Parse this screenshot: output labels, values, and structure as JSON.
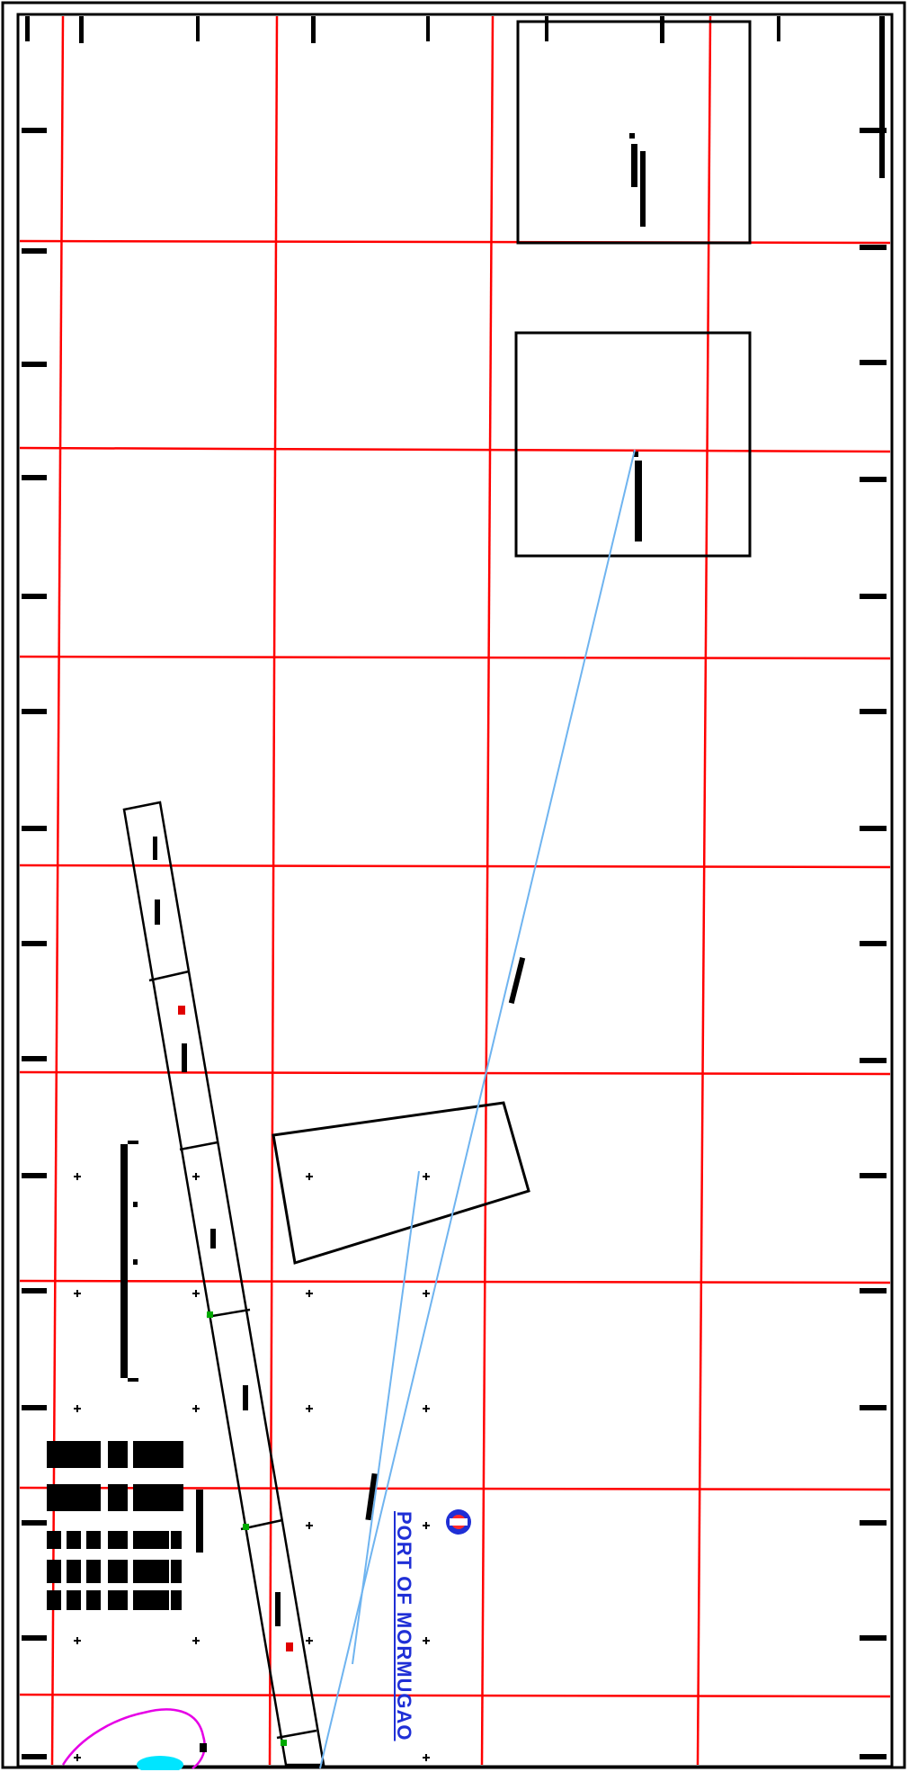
{
  "map": {
    "title": "PORT OF MORMUGAO",
    "logo": "port-logo",
    "colors": {
      "frame": "#000000",
      "grid": "#ff0000",
      "route": "#6fb4f0",
      "title": "#1f2fd6",
      "coast": "#e600e6",
      "shoal": "#00e5ff",
      "marker_red": "#e00000",
      "marker_green": "#00aa00"
    }
  }
}
